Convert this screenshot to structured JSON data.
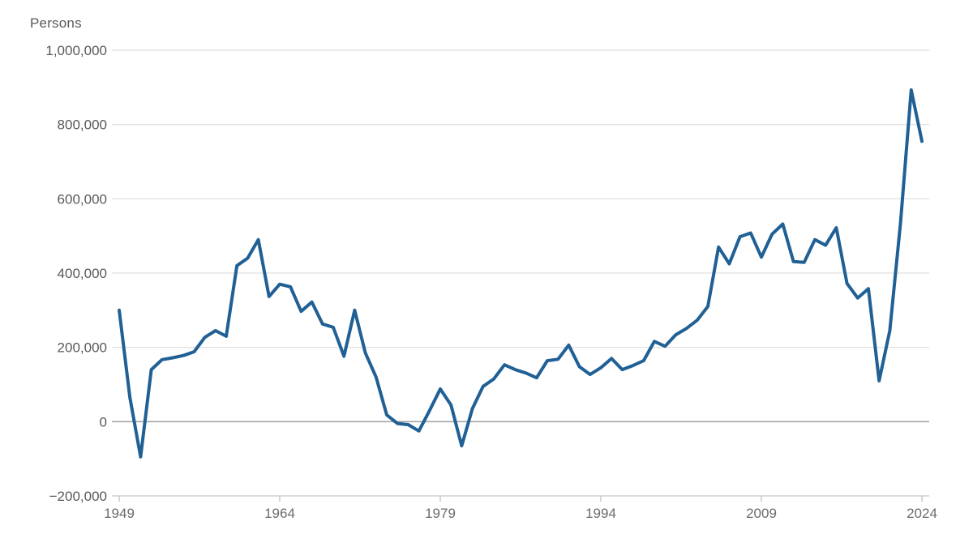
{
  "chart_data": {
    "type": "line",
    "title": "",
    "unit_label": "Persons",
    "xlabel": "",
    "ylabel": "Persons",
    "xlim": [
      1949,
      2024
    ],
    "ylim": [
      -200000,
      1000000
    ],
    "grid": "horizontal",
    "legend": "none",
    "x_ticks": [
      1949,
      1964,
      1979,
      1994,
      2009,
      2024
    ],
    "y_ticks": [
      {
        "value": 1000000,
        "label": "1,000,000"
      },
      {
        "value": 800000,
        "label": "800,000"
      },
      {
        "value": 600000,
        "label": "600,000"
      },
      {
        "value": 400000,
        "label": "400,000"
      },
      {
        "value": 200000,
        "label": "200,000"
      },
      {
        "value": 0,
        "label": "0"
      },
      {
        "value": -200000,
        "label": "−200,000"
      }
    ],
    "series": [
      {
        "name": "Persons",
        "color": "#206095",
        "years": [
          1949,
          1950,
          1951,
          1952,
          1953,
          1954,
          1955,
          1956,
          1957,
          1958,
          1959,
          1960,
          1961,
          1962,
          1963,
          1964,
          1965,
          1966,
          1967,
          1968,
          1969,
          1970,
          1971,
          1972,
          1973,
          1974,
          1975,
          1976,
          1977,
          1978,
          1979,
          1980,
          1981,
          1982,
          1983,
          1984,
          1985,
          1986,
          1987,
          1988,
          1989,
          1990,
          1991,
          1992,
          1993,
          1994,
          1995,
          1996,
          1997,
          1998,
          1999,
          2000,
          2001,
          2002,
          2003,
          2004,
          2005,
          2006,
          2007,
          2008,
          2009,
          2010,
          2011,
          2012,
          2013,
          2014,
          2015,
          2016,
          2017,
          2018,
          2019,
          2020,
          2021,
          2022,
          2023,
          2024
        ],
        "values": [
          300000,
          65000,
          -95000,
          140000,
          167000,
          172000,
          178000,
          188000,
          227000,
          245000,
          230000,
          420000,
          440000,
          490000,
          337000,
          370000,
          363000,
          297000,
          322000,
          263000,
          254000,
          176000,
          300000,
          185000,
          120000,
          18000,
          -5000,
          -8000,
          -25000,
          30000,
          88000,
          45000,
          -65000,
          35000,
          95000,
          115000,
          153000,
          140000,
          131000,
          118000,
          164000,
          168000,
          206000,
          148000,
          127000,
          145000,
          170000,
          140000,
          151000,
          164000,
          216000,
          203000,
          234000,
          251000,
          273000,
          310000,
          470000,
          425000,
          498000,
          508000,
          443000,
          505000,
          532000,
          431000,
          429000,
          490000,
          475000,
          522000,
          372000,
          333000,
          358000,
          110000,
          245000,
          535000,
          893000,
          755000
        ]
      }
    ]
  },
  "colors": {
    "line": "#206095",
    "gridline": "#e3e3e3",
    "zero_line": "#a6a6a6",
    "axis_line": "#cbcbcb",
    "tick_mark": "#c5c5c5",
    "label_text": "#595959",
    "x_label_text": "#6b6b6b",
    "background": "#ffffff"
  }
}
